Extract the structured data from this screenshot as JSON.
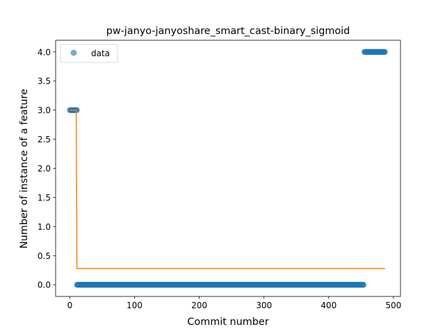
{
  "chart_data": {
    "type": "scatter",
    "title": "pw-janyo-janyoshare_smart_cast-binary_sigmoid",
    "xlabel": "Commit number",
    "ylabel": "Number of instance of a feature",
    "xlim": [
      -21.9,
      510.9
    ],
    "ylim": [
      -0.2,
      4.2
    ],
    "xticks": [
      0,
      100,
      200,
      300,
      400,
      500
    ],
    "yticks": [
      0.0,
      0.5,
      1.0,
      1.5,
      2.0,
      2.5,
      3.0,
      3.5,
      4.0
    ],
    "xtick_labels": [
      "0",
      "100",
      "200",
      "300",
      "400",
      "500"
    ],
    "ytick_labels": [
      "0.0",
      "0.5",
      "1.0",
      "1.5",
      "2.0",
      "2.5",
      "3.0",
      "3.5",
      "4.0"
    ],
    "legend": {
      "entries": [
        "data"
      ],
      "position": "upper-left"
    },
    "grid": false,
    "colors": {
      "data": "#1f77b4",
      "fit": "#ff7f0e"
    },
    "series": [
      {
        "name": "data",
        "kind": "points",
        "segments": [
          {
            "x_start": 0,
            "x_end": 11,
            "y": 3.0
          },
          {
            "x_start": 11,
            "x_end": 454,
            "y": 0.0
          },
          {
            "x_start": 455,
            "x_end": 487,
            "y": 4.0
          }
        ]
      },
      {
        "kind": "step-line",
        "x": [
          0,
          10,
          10,
          11,
          487
        ],
        "y": [
          3.0,
          3.0,
          2.9,
          0.28,
          0.28
        ]
      }
    ]
  }
}
